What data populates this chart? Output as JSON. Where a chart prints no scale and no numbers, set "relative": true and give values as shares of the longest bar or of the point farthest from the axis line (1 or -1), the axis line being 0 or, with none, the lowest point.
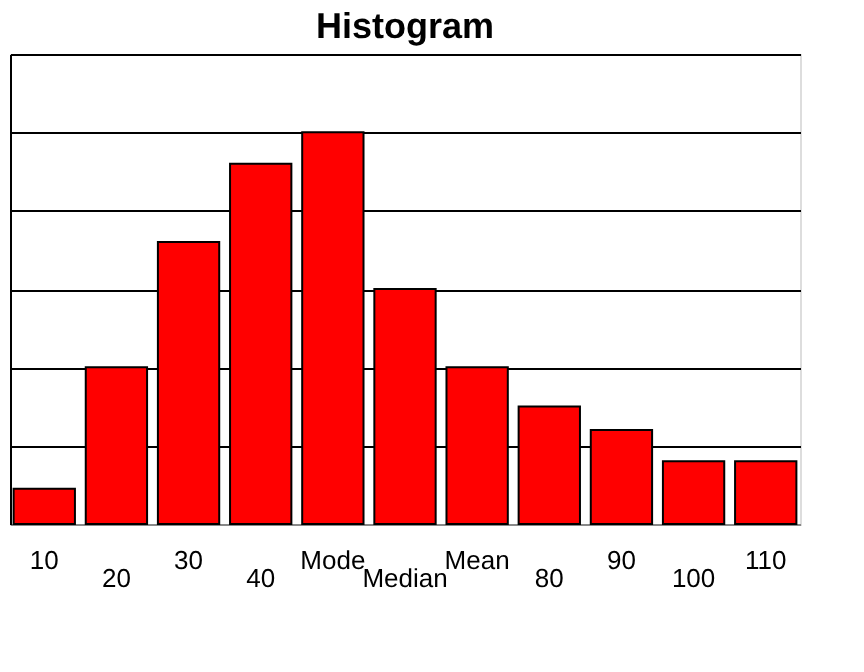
{
  "chart_data": {
    "type": "bar",
    "title": "Histogram",
    "categories": [
      "10",
      "20",
      "30",
      "40",
      "Mode",
      "Median",
      "Mean",
      "80",
      "90",
      "100",
      "110"
    ],
    "values": [
      0.09,
      0.4,
      0.72,
      0.92,
      1,
      0.6,
      0.4,
      0.3,
      0.24,
      0.16,
      0.16
    ],
    "color": "#ff0000",
    "relative": true,
    "grid": "y"
  }
}
